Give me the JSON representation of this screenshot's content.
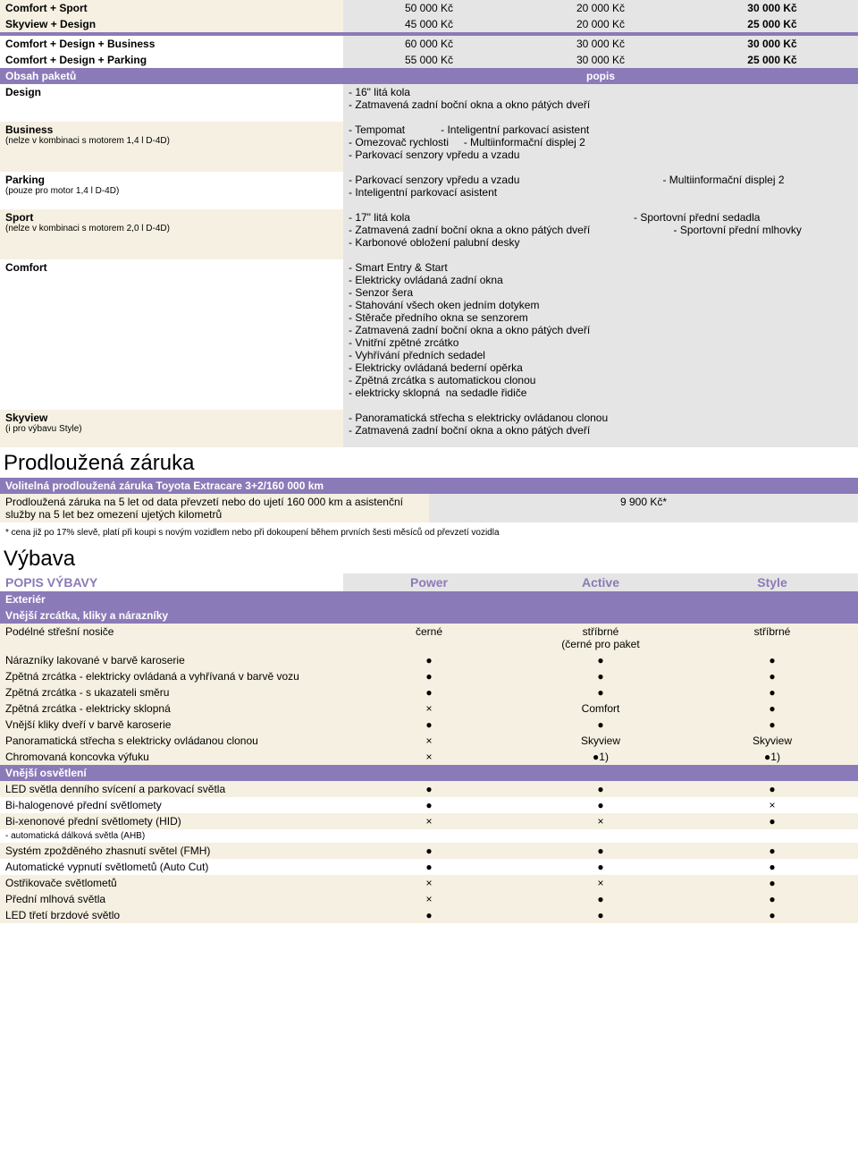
{
  "priceRows": [
    {
      "name": "Comfort + Sport",
      "c1": "50 000 Kč",
      "c2": "20 000 Kč",
      "c3": "30 000 Kč",
      "bg": "beige"
    },
    {
      "name": "Skyview + Design",
      "c1": "45 000 Kč",
      "c2": "20 000 Kč",
      "c3": "25 000 Kč",
      "bg": "beige"
    }
  ],
  "priceRows2": [
    {
      "name": "Comfort + Design + Business",
      "c1": "60 000 Kč",
      "c2": "30 000 Kč",
      "c3": "30 000 Kč",
      "bg": "white"
    },
    {
      "name": "Comfort + Design + Parking",
      "c1": "55 000 Kč",
      "c2": "30 000 Kč",
      "c3": "25 000 Kč",
      "bg": "white"
    }
  ],
  "obsah_title": "Obsah paketů",
  "obsah_popis": "popis",
  "packages": [
    {
      "name": "Design",
      "sub": "",
      "desc": "- 16\" litá kola\n- Zatmavená zadní boční okna a okno pátých dveří"
    },
    {
      "name": "Business",
      "sub": "(nelze v kombinaci s motorem 1,4 l D-4D)",
      "desc": "- Tempomat            - Inteligentní parkovací asistent\n- Omezovač rychlosti     - Multiinformační displej 2\n- Parkovací senzory vpředu a vzadu"
    },
    {
      "name": "Parking",
      "sub": "(pouze pro motor 1,4 l D-4D)",
      "desc": "- Parkovací senzory vpředu a vzadu                                                - Multiinformační displej 2\n- Inteligentní parkovací asistent"
    },
    {
      "name": "Sport",
      "sub": "(nelze v kombinaci s motorem 2,0 l D-4D)",
      "desc": "- 17\" litá kola                                                                           - Sportovní přední sedadla\n- Zatmavená zadní boční okna a okno pátých dveří                            - Sportovní přední mlhovky                                                       - Karbonové obložení palubní desky"
    },
    {
      "name": "Comfort",
      "sub": "",
      "desc": "- Smart Entry & Start\n- Elektricky ovládaná zadní okna\n- Senzor šera\n- Stahování všech oken jedním dotykem\n- Stěrače předního okna se senzorem\n- Zatmavená zadní boční okna a okno pátých dveří\n- Vnitřní zpětné zrcátko\n- Vyhřívání předních sedadel\n- Elektricky ovládaná bederní opěrka\n- Zpětná zrcátka s automatickou clonou\n- elektricky sklopná  na sedadle řidiče"
    },
    {
      "name": "Skyview",
      "sub": "(i pro výbavu Style)",
      "desc": "- Panoramatická střecha s elektricky ovládanou clonou\n- Zatmavená zadní boční okna a okno pátých dveří"
    }
  ],
  "warranty_h": "Prodloužená záruka",
  "warranty_bar": "Volitelná prodloužená záruka Toyota Extracare 3+2/160 000 km",
  "warranty_text": "Prodloužená záruka na 5 let od data převzetí nebo do ujetí 160 000 km a asistenční služby na 5 let bez omezení ujetých kilometrů",
  "warranty_price": "9 900 Kč*",
  "warranty_note": "* cena již po 17% slevě, platí při koupi s novým vozidlem nebo při dokoupení během prvních šesti měsíců od převzetí vozidla",
  "vybava_h": "Výbava",
  "popis_vybavy": "POPIS VÝBAVY",
  "trims": [
    "Power",
    "Active",
    "Style"
  ],
  "ext_title": "Exteriér",
  "sec1_title": "Vnější zrcátka, kliky a nárazníky",
  "sec1_rows": [
    {
      "name": "Podélné střešní nosiče",
      "v": [
        "černé",
        "stříbrné\n(černé pro paket",
        "stříbrné"
      ],
      "bg": "beige"
    },
    {
      "name": "Nárazníky lakované v barvě karoserie",
      "v": [
        "●",
        "●",
        "●"
      ],
      "bg": "beige"
    },
    {
      "name": "Zpětná zrcátka - elektricky ovládaná a vyhřívaná v barvě vozu",
      "v": [
        "●",
        "●",
        "●"
      ],
      "bg": "beige"
    },
    {
      "name": "Zpětná zrcátka - s ukazateli směru",
      "v": [
        "●",
        "●",
        "●"
      ],
      "bg": "beige"
    },
    {
      "name": "Zpětná zrcátka - elektricky sklopná",
      "v": [
        "×",
        "Comfort",
        "●"
      ],
      "bg": "beige"
    },
    {
      "name": "Vnější kliky dveří v barvě karoserie",
      "v": [
        "●",
        "●",
        "●"
      ],
      "bg": "beige"
    },
    {
      "name": "Panoramatická střecha s elektricky ovládanou clonou",
      "v": [
        "×",
        "Skyview",
        "Skyview"
      ],
      "bg": "beige"
    },
    {
      "name": "Chromovaná koncovka výfuku",
      "v": [
        "×",
        "●1)",
        "●1)"
      ],
      "bg": "beige"
    }
  ],
  "sec2_title": "Vnější osvětlení",
  "sec2_rows": [
    {
      "name": "LED světla denního svícení a parkovací světla",
      "v": [
        "●",
        "●",
        "●"
      ],
      "bg": "beige"
    },
    {
      "name": "Bi-halogenové přední světlomety",
      "v": [
        "●",
        "●",
        "×"
      ],
      "bg": "white"
    },
    {
      "name": "Bi-xenonové přední světlomety (HID)",
      "v": [
        "×",
        "×",
        "●"
      ],
      "bg": "beige"
    },
    {
      "name": "- automatická dálková světla (AHB)",
      "v": [
        "",
        "",
        ""
      ],
      "bg": "white",
      "small": true
    },
    {
      "name": "Systém zpožděného zhasnutí světel (FMH)",
      "v": [
        "●",
        "●",
        "●"
      ],
      "bg": "beige"
    },
    {
      "name": "Automatické vypnutí světlometů (Auto Cut)",
      "v": [
        "●",
        "●",
        "●"
      ],
      "bg": "white"
    },
    {
      "name": "Ostřikovače světlometů",
      "v": [
        "×",
        "×",
        "●"
      ],
      "bg": "beige"
    },
    {
      "name": "Přední mlhová světla",
      "v": [
        "×",
        "●",
        "●"
      ],
      "bg": "beige"
    },
    {
      "name": "LED třetí brzdové světlo",
      "v": [
        "●",
        "●",
        "●"
      ],
      "bg": "beige"
    }
  ]
}
